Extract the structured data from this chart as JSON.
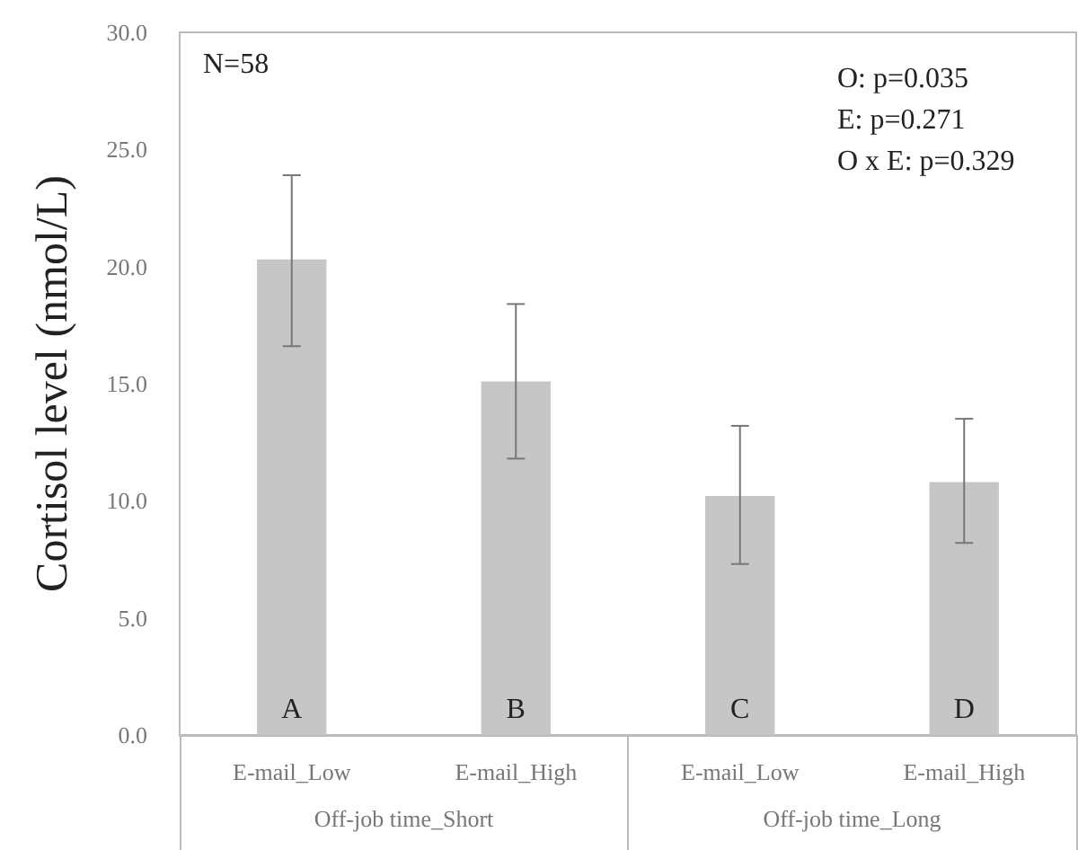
{
  "chart_data": {
    "type": "bar",
    "ylabel": "Cortisol level (nmol/L)",
    "categories": [
      "E-mail_Low",
      "E-mail_High",
      "E-mail_Low",
      "E-mail_High"
    ],
    "values": [
      20.3,
      15.1,
      10.2,
      10.8
    ],
    "errors": [
      [
        16.6,
        23.9
      ],
      [
        11.8,
        18.4
      ],
      [
        7.3,
        13.2
      ],
      [
        8.2,
        13.5
      ]
    ],
    "value_labels": [
      "A",
      "B",
      "C",
      "D"
    ],
    "color": "#c6c6c6",
    "ylim": [
      0,
      30
    ],
    "yticks": [
      {
        "value": 0,
        "label": "0.0"
      },
      {
        "value": 5,
        "label": "5.0"
      },
      {
        "value": 10,
        "label": "10.0"
      },
      {
        "value": 15,
        "label": "15.0"
      },
      {
        "value": 20,
        "label": "20.0"
      },
      {
        "value": 25,
        "label": "25.0"
      },
      {
        "value": 30,
        "label": "30.0"
      }
    ],
    "grid": false,
    "annotations": [
      "N=58",
      "O: p=0.035",
      "E: p=0.271",
      "O x E: p=0.329",
      "Off-job time_Short",
      "Off-job time_Long"
    ]
  }
}
